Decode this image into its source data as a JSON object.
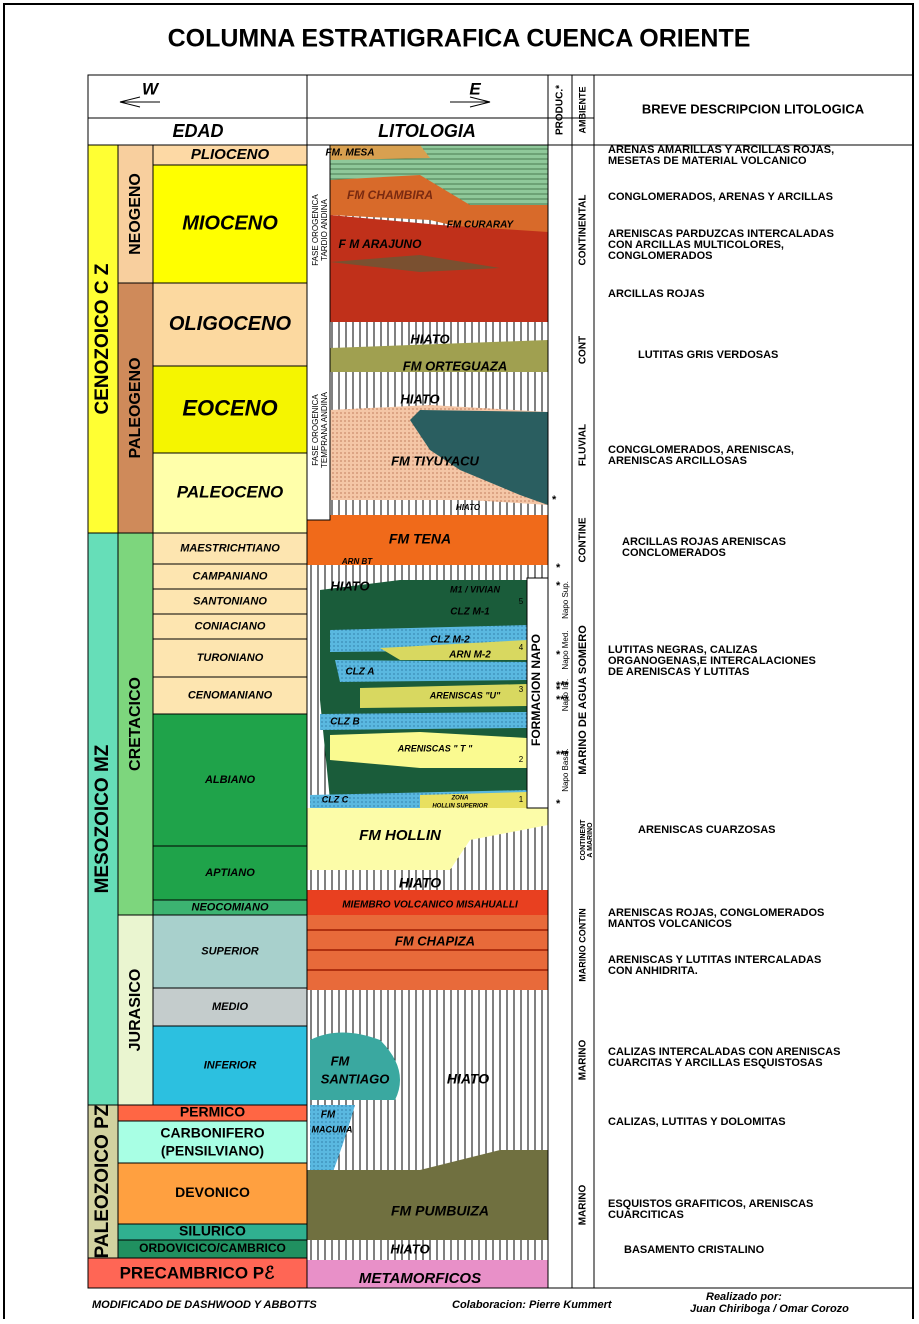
{
  "title": "COLUMNA ESTRATIGRAFICA CUENCA ORIENTE",
  "header": {
    "west": "W",
    "east": "E",
    "edad": "EDAD",
    "litologia": "LITOLOGIA",
    "produccion": "PRODUC.*",
    "ambiente": "AMBIENTE",
    "descripcion": "BREVE DESCRIPCION LITOLOGICA"
  },
  "eras": [
    "CENOZOICO C Z",
    "MESOZOICO MZ",
    "PALEOZOICO PZ",
    "PRECAMBRICO Pℰ"
  ],
  "periods": [
    "NEOGENO",
    "PALEOGENO",
    "CRETACICO",
    "JURASICO"
  ],
  "ages": [
    "PLIOCENO",
    "MIOCENO",
    "OLIGOCENO",
    "EOCENO",
    "PALEOCENO",
    "MAESTRICHTIANO",
    "CAMPANIANO",
    "SANTONIANO",
    "CONIACIANO",
    "TURONIANO",
    "CENOMANIANO",
    "ALBIANO",
    "APTIANO",
    "NEOCOMIANO",
    "SUPERIOR",
    "MEDIO",
    "INFERIOR",
    "PERMICO",
    "CARBONIFERO",
    "(PENSILVIANO)",
    "DEVONICO",
    "SILURICO",
    "ORDOVICICO/CAMBRICO"
  ],
  "phases": [
    [
      "FASE OROGENICA",
      "TARDIO ANDINA"
    ],
    [
      "FASE OROGENICA",
      "TEMPRANA ANDINA"
    ]
  ],
  "formations": [
    "FM. MESA",
    "FM CHAMBIRA",
    "FM CURARAY",
    "F M ARAJUNO",
    "HIATO",
    "FM ORTEGUAZA",
    "HIATO",
    "FM TIYUYACU",
    "HIATO",
    "FM TENA",
    "ARN BT",
    "HIATO",
    "M1 / VIVIAN",
    "CLZ M-1",
    "CLZ M-2",
    "ARN M-2",
    "CLZ A",
    "ARENISCAS \"U\"",
    "CLZ B",
    "ARENISCAS \" T \"",
    "CLZ C",
    "ZONA",
    "HOLLIN SUPERIOR",
    "FM HOLLIN",
    "HIATO",
    "MIEMBRO VOLCANICO MISAHUALLI",
    "FM CHAPIZA",
    "FM",
    "SANTIAGO",
    "HIATO",
    "FM",
    "MACUMA",
    "FM PUMBUIZA",
    "HIATO",
    "METAMORFICOS"
  ],
  "napo": {
    "title": "FORMACION NAPO",
    "members": [
      "Napo Sup.",
      "Napo Med.",
      "Napo Inf.",
      "Napo Basal."
    ],
    "units": [
      "5",
      "4",
      "3",
      "2",
      "1"
    ]
  },
  "production": [
    "*",
    "*",
    "*",
    "*",
    "*",
    "***",
    "***",
    "***",
    "*"
  ],
  "environments": [
    "CONTINENTAL",
    "CONT",
    "FLUVIAL",
    "CONTINE",
    "MARINO DE AGUA SOMERO",
    "CONTINENT",
    "A MARINO",
    "MARINO CONTIN",
    "MARINO",
    "MARINO"
  ],
  "descriptions": [
    [
      "ARENAS AMARILLAS Y ARCILLAS ROJAS,",
      "MESETAS DE MATERIAL VOLCANICO"
    ],
    [
      "CONGLOMERADOS, ARENAS Y ARCILLAS"
    ],
    [
      "ARENISCAS PARDUZCAS INTERCALADAS",
      "CON ARCILLAS MULTICOLORES,",
      "CONGLOMERADOS"
    ],
    [
      "ARCILLAS ROJAS"
    ],
    [
      "LUTITAS GRIS VERDOSAS"
    ],
    [
      "CONCGLOMERADOS,  ARENISCAS,",
      "ARENISCAS ARCILLOSAS"
    ],
    [
      "ARCILLAS ROJAS ARENISCAS",
      "CONCLOMERADOS"
    ],
    [
      "LUTITAS NEGRAS, CALIZAS",
      "ORGANOGENAS,E INTERCALACIONES",
      "DE ARENISCAS Y LUTITAS"
    ],
    [
      "ARENISCAS CUARZOSAS"
    ],
    [
      "ARENISCAS ROJAS, CONGLOMERADOS",
      "MANTOS VOLCANICOS"
    ],
    [
      "ARENISCAS Y LUTITAS INTERCALADAS",
      "CON ANHIDRITA."
    ],
    [
      "CALIZAS INTERCALADAS CON ARENISCAS",
      "CUARCITAS Y ARCILLAS ESQUISTOSAS"
    ],
    [
      "CALIZAS, LUTITAS Y DOLOMITAS"
    ],
    [
      "ESQUISTOS GRAFITICOS, ARENISCAS",
      "CUARCITICAS"
    ],
    [
      "BASAMENTO CRISTALINO"
    ]
  ],
  "footer": {
    "source": "MODIFICADO DE  DASHWOOD  Y ABBOTTS",
    "collaboration": "Colaboracion: Pierre Kummert",
    "author_label": "Realizado por:",
    "authors": "Juan Chiriboga / Omar Corozo"
  }
}
